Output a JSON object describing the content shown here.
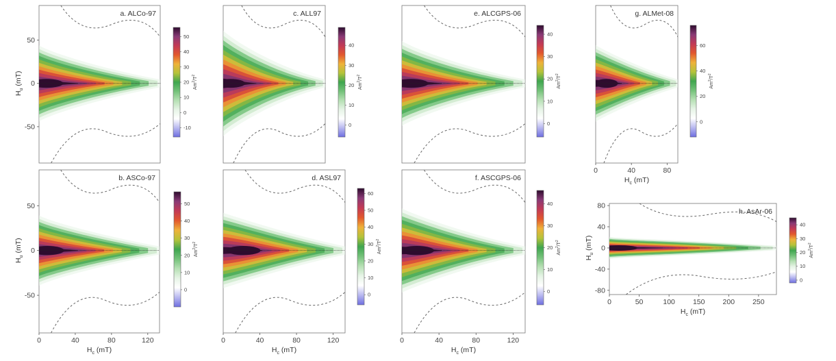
{
  "figure": {
    "colors": {
      "ramp": [
        "#6e6ee0",
        "#b9b9f0",
        "#ffffff",
        "#e6f4e6",
        "#b6e0b4",
        "#74c27a",
        "#3fa64f",
        "#b5c33a",
        "#efb23a",
        "#e2582d",
        "#c33a55",
        "#8a3a76",
        "#2e0c2e"
      ],
      "dashed_contour": "#666666",
      "zero_line": "#222222"
    },
    "xaxis_label": "H",
    "xaxis_sub": "c",
    "xaxis_unit": "(mT)",
    "yaxis_label": "H",
    "yaxis_sub": "u",
    "yaxis_unit": "(mT)",
    "cbar_unit_main": "Am",
    "cbar_unit_sup": "2",
    "cbar_unit_den": "T",
    "cbar_unit_den_sup": "2"
  },
  "chart_data": [
    {
      "id": "a",
      "type": "heatmap",
      "title": "a. ALCo-97",
      "x": {
        "ticks": [],
        "range": [
          0,
          135
        ]
      },
      "y": {
        "ticks": [
          "50",
          "0",
          "-50"
        ],
        "values": [
          50,
          0,
          -50
        ],
        "range": [
          -92,
          90
        ]
      },
      "colorbar": {
        "ticks": [
          "50",
          "40",
          "30",
          "20",
          "10",
          "0",
          "-10"
        ],
        "values": [
          50,
          40,
          30,
          20,
          10,
          0,
          -10
        ],
        "range": [
          -16,
          56
        ]
      },
      "peak_x": 8,
      "spread": 0.9
    },
    {
      "id": "c",
      "type": "heatmap",
      "title": "c. ALL97",
      "x": {
        "ticks": [],
        "range": [
          0,
          135
        ]
      },
      "y": {
        "ticks": [],
        "values": [],
        "range": [
          -92,
          90
        ]
      },
      "colorbar": {
        "ticks": [
          "40",
          "30",
          "20",
          "10",
          "0"
        ],
        "values": [
          40,
          30,
          20,
          10,
          0
        ],
        "range": [
          -6,
          49
        ]
      },
      "peak_x": 10,
      "spread": 1.25
    },
    {
      "id": "e",
      "type": "heatmap",
      "title": "e. ALCGPS-06",
      "x": {
        "ticks": [],
        "range": [
          0,
          135
        ]
      },
      "y": {
        "ticks": [],
        "values": [],
        "range": [
          -92,
          90
        ]
      },
      "colorbar": {
        "ticks": [
          "40",
          "30",
          "20",
          "10",
          "0"
        ],
        "values": [
          40,
          30,
          20,
          10,
          0
        ],
        "range": [
          -6,
          44
        ]
      },
      "peak_x": 10,
      "spread": 1.0
    },
    {
      "id": "g",
      "type": "heatmap",
      "title": "g. ALMet-08",
      "x": {
        "ticks": [
          "0",
          "40",
          "80"
        ],
        "values": [
          0,
          40,
          80
        ],
        "range": [
          0,
          92
        ]
      },
      "y": {
        "ticks": [],
        "values": [],
        "range": [
          -92,
          90
        ]
      },
      "xaxis_shown": true,
      "colorbar": {
        "ticks": [
          "60",
          "40",
          "20",
          "0"
        ],
        "values": [
          60,
          40,
          20,
          0
        ],
        "range": [
          -12,
          76
        ]
      },
      "peak_x": 12,
      "spread": 0.9
    },
    {
      "id": "b",
      "type": "heatmap",
      "title": "b. ASCo-97",
      "x": {
        "ticks": [
          "0",
          "40",
          "80",
          "120"
        ],
        "values": [
          0,
          40,
          80,
          120
        ],
        "range": [
          0,
          133
        ]
      },
      "y": {
        "ticks": [
          "50",
          "0",
          "-50"
        ],
        "values": [
          50,
          0,
          -50
        ],
        "range": [
          -92,
          90
        ]
      },
      "xaxis_shown": true,
      "colorbar": {
        "ticks": [
          "50",
          "40",
          "30",
          "20",
          "10",
          "0"
        ],
        "values": [
          50,
          40,
          30,
          20,
          10,
          0
        ],
        "range": [
          -10,
          57
        ]
      },
      "peak_x": 9,
      "spread": 0.8
    },
    {
      "id": "d",
      "type": "heatmap",
      "title": "d. ASL97",
      "x": {
        "ticks": [
          "0",
          "40",
          "80",
          "120"
        ],
        "values": [
          0,
          40,
          80,
          120
        ],
        "range": [
          0,
          133
        ]
      },
      "y": {
        "ticks": [],
        "values": [],
        "range": [
          -92,
          90
        ]
      },
      "xaxis_shown": true,
      "colorbar": {
        "ticks": [
          "60",
          "50",
          "40",
          "30",
          "20",
          "10",
          "0"
        ],
        "values": [
          60,
          50,
          40,
          30,
          20,
          10,
          0
        ],
        "range": [
          -6,
          63
        ]
      },
      "peak_x": 22,
      "spread": 0.85
    },
    {
      "id": "f",
      "type": "heatmap",
      "title": "f. ASCGPS-06",
      "x": {
        "ticks": [
          "0",
          "40",
          "80",
          "120"
        ],
        "values": [
          0,
          40,
          80,
          120
        ],
        "range": [
          0,
          133
        ]
      },
      "y": {
        "ticks": [],
        "values": [],
        "range": [
          -92,
          90
        ]
      },
      "xaxis_shown": true,
      "colorbar": {
        "ticks": [
          "40",
          "30",
          "20",
          "10",
          "0"
        ],
        "values": [
          40,
          30,
          20,
          10,
          0
        ],
        "range": [
          -6,
          46
        ]
      },
      "peak_x": 16,
      "spread": 0.95
    },
    {
      "id": "h",
      "type": "heatmap",
      "title": "h. AsAr-06",
      "x": {
        "ticks": [
          "0",
          "50",
          "100",
          "150",
          "200",
          "250"
        ],
        "values": [
          0,
          50,
          100,
          150,
          200,
          250
        ],
        "range": [
          0,
          280
        ]
      },
      "y": {
        "ticks": [
          "80",
          "40",
          "0",
          "-40",
          "-80"
        ],
        "values": [
          80,
          40,
          0,
          -40,
          -80
        ],
        "range": [
          -88,
          84
        ]
      },
      "xaxis_shown": true,
      "colorbar": {
        "ticks": [
          "40",
          "30",
          "20",
          "10",
          "0"
        ],
        "values": [
          40,
          30,
          20,
          10,
          0
        ],
        "range": [
          -2,
          45
        ]
      },
      "peak_x": 15,
      "spread": 0.45
    }
  ]
}
